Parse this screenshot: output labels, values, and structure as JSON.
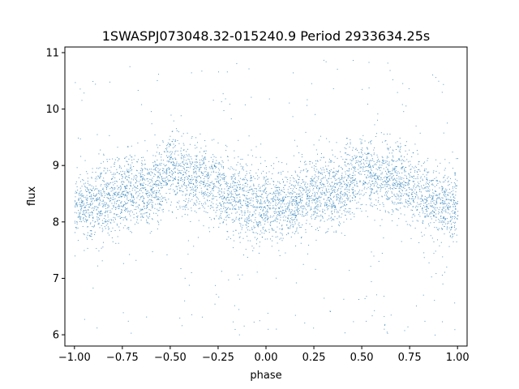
{
  "chart_data": {
    "type": "scatter",
    "title": "1SWASPJ073048.32-015240.9 Period 2933634.25s",
    "xlabel": "phase",
    "ylabel": "flux",
    "xlim": [
      -1.05,
      1.05
    ],
    "ylim": [
      5.8,
      11.1
    ],
    "x_ticks": [
      -1.0,
      -0.75,
      -0.5,
      -0.25,
      0.0,
      0.25,
      0.5,
      0.75,
      1.0
    ],
    "x_tick_labels": [
      "−1.00",
      "−0.75",
      "−0.50",
      "−0.25",
      "0.00",
      "0.25",
      "0.50",
      "0.75",
      "1.00"
    ],
    "y_ticks": [
      6,
      7,
      8,
      9,
      10,
      11
    ],
    "y_tick_labels": [
      "6",
      "7",
      "8",
      "9",
      "10",
      "11"
    ],
    "grid": false,
    "marker_color": "#1f77b4",
    "trend": {
      "phase": [
        -1.0,
        -0.9,
        -0.8,
        -0.7,
        -0.6,
        -0.5,
        -0.4,
        -0.3,
        -0.2,
        -0.1,
        0.0,
        0.1,
        0.2,
        0.3,
        0.4,
        0.5,
        0.6,
        0.7,
        0.8,
        0.9,
        1.0
      ],
      "flux": [
        8.3,
        8.3,
        8.45,
        8.55,
        8.55,
        8.95,
        8.8,
        8.75,
        8.5,
        8.35,
        8.3,
        8.3,
        8.45,
        8.55,
        8.55,
        8.95,
        8.8,
        8.75,
        8.5,
        8.35,
        8.3
      ]
    },
    "outlier_range": [
      6.0,
      10.9
    ]
  }
}
